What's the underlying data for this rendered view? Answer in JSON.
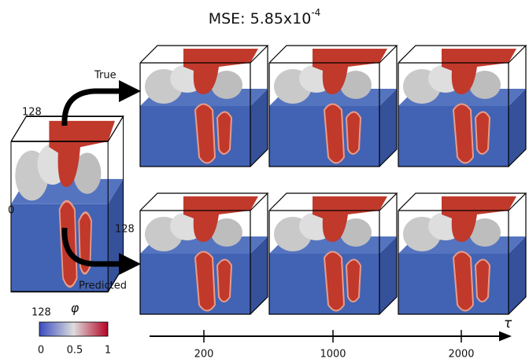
{
  "title": {
    "text": "MSE: 5.85x10",
    "exponent": "-4"
  },
  "labels": {
    "true": "True",
    "predicted": "Predicted"
  },
  "axes": {
    "top": "128",
    "origin": "0",
    "right": "128",
    "bottom": "128"
  },
  "colorbar": {
    "symbol": "φ",
    "ticks": [
      "0",
      "0.5",
      "1"
    ]
  },
  "timeline": {
    "symbol": "τ",
    "ticks": [
      "200",
      "1000",
      "2000"
    ]
  }
}
